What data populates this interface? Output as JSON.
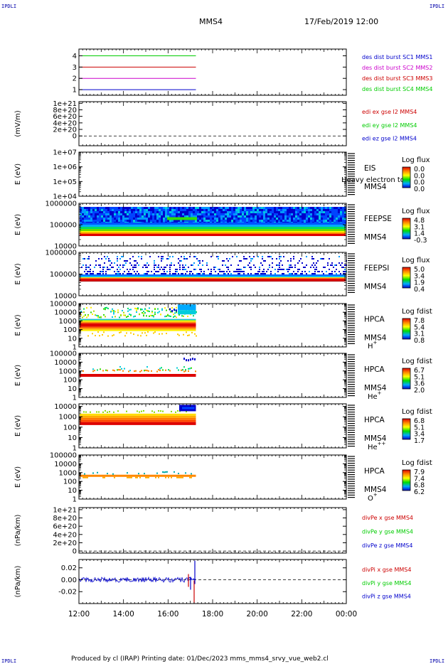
{
  "header": {
    "corner_label": "IPDLI",
    "spacecraft": "MMS4",
    "datetime": "17/Feb/2019 12:00"
  },
  "footer": {
    "credit": "Produced by cl (IRAP)   Printing date: 01/Dec/2023   mms_mms4_srvy_vue_web2.cl"
  },
  "colors": {
    "blue": "#0000cc",
    "magenta": "#cc00cc",
    "red": "#cc0000",
    "green": "#00cc00",
    "black": "#000000"
  },
  "chart_data": {
    "type": "multi-panel",
    "x_axis": {
      "ticks": [
        "12:00",
        "14:00",
        "16:00",
        "18:00",
        "20:00",
        "22:00",
        "00:00"
      ],
      "range_hours": [
        12,
        24
      ],
      "data_end_hours": 17.25
    },
    "panels": [
      {
        "id": "p1",
        "type": "line",
        "ylabel": "",
        "yticks": [
          "1",
          "2",
          "3",
          "4"
        ],
        "ylim": [
          0.5,
          4.6
        ],
        "series": [
          {
            "name": "des dist burst SC1 MMS1",
            "y": 1,
            "color": "#0000cc"
          },
          {
            "name": "des dist burst SC2 MMS2",
            "y": 2,
            "color": "#cc00cc"
          },
          {
            "name": "des dist burst SC3 MMS3",
            "y": 3,
            "color": "#cc0000"
          },
          {
            "name": "des dist burst SC4 MMS4",
            "y": 4,
            "color": "#00cc00"
          }
        ]
      },
      {
        "id": "p2",
        "type": "line",
        "ylabel": "(mV/m)",
        "yticks": [
          "0",
          "2e+20",
          "4e+20",
          "6e+20",
          "8e+20",
          "1e+21"
        ],
        "ylim": [
          -0.3,
          1.05
        ],
        "zero_line": true,
        "series": [
          {
            "name": "edi ex gse l2 MMS4",
            "color": "#cc0000"
          },
          {
            "name": "edi ey gse l2 MMS4",
            "color": "#00cc00"
          },
          {
            "name": "edi ez gse l2 MMS4",
            "color": "#0000cc"
          }
        ]
      },
      {
        "id": "p3",
        "type": "spectrogram",
        "ylabel": "E (eV)",
        "yticks": [
          "1e+04",
          "1e+05",
          "1e+06",
          "1e+07"
        ],
        "ylog": [
          4,
          7
        ],
        "labels": [
          "EIS",
          "MMS4"
        ],
        "overlay_text": "Heavy electron to",
        "colorbar": {
          "title": "Log flux",
          "values": [
            "0.0",
            "0.0",
            "0.0",
            "0.0"
          ]
        }
      },
      {
        "id": "p4",
        "type": "spectrogram",
        "ylabel": "E (eV)",
        "yticks": [
          "10000",
          "100000",
          "1000000"
        ],
        "ylog": [
          4,
          6
        ],
        "labels": [
          "FEEPSE",
          "MMS4"
        ],
        "colorbar": {
          "title": "Log flux",
          "values": [
            "4.8",
            "3.1",
            "1.4",
            "-0.3"
          ]
        }
      },
      {
        "id": "p5",
        "type": "spectrogram",
        "ylabel": "E (eV)",
        "yticks": [
          "10000",
          "100000",
          "1000000"
        ],
        "ylog": [
          4,
          6
        ],
        "labels": [
          "FEEPSI",
          "MMS4"
        ],
        "colorbar": {
          "title": "Log flux",
          "values": [
            "5.0",
            "3.4",
            "1.9",
            "0.4"
          ]
        }
      },
      {
        "id": "p6",
        "type": "spectrogram",
        "ylabel": "E (eV)",
        "yticks": [
          "1",
          "10",
          "100",
          "1000",
          "10000",
          "100000"
        ],
        "ylog": [
          0,
          5
        ],
        "labels": [
          "HPCA",
          "MMS4"
        ],
        "species": "H",
        "species_sup": "+",
        "colorbar": {
          "title": "Log fdist",
          "values": [
            "7.8",
            "5.4",
            "3.1",
            "0.8"
          ]
        }
      },
      {
        "id": "p7",
        "type": "spectrogram",
        "ylabel": "E (eV)",
        "yticks": [
          "1",
          "10",
          "100",
          "1000",
          "10000",
          "100000"
        ],
        "ylog": [
          0,
          5
        ],
        "labels": [
          "HPCA",
          "MMS4"
        ],
        "species": "He",
        "species_sup": "+",
        "colorbar": {
          "title": "Log fdist",
          "values": [
            "6.7",
            "5.1",
            "3.6",
            "2.0"
          ]
        }
      },
      {
        "id": "p8",
        "type": "spectrogram",
        "ylabel": "E (eV)",
        "yticks": [
          "1",
          "10",
          "100",
          "1000",
          "10000"
        ],
        "ylog": [
          0,
          4.25
        ],
        "labels": [
          "HPCA",
          "MMS4"
        ],
        "species": "He",
        "species_sup": "++",
        "colorbar": {
          "title": "Log fdist",
          "values": [
            "6.8",
            "5.1",
            "3.4",
            "1.7"
          ]
        }
      },
      {
        "id": "p9",
        "type": "spectrogram",
        "ylabel": "E (eV)",
        "yticks": [
          "1",
          "10",
          "100",
          "1000",
          "10000",
          "100000"
        ],
        "ylog": [
          0,
          5
        ],
        "labels": [
          "HPCA",
          "MMS4"
        ],
        "species": "O",
        "species_sup": "+",
        "colorbar": {
          "title": "Log fdist",
          "values": [
            "7.9",
            "7.4",
            "6.8",
            "6.2"
          ]
        }
      },
      {
        "id": "p10",
        "type": "line",
        "ylabel": "(nPa/km)",
        "yticks": [
          "0",
          "2e+20",
          "4e+20",
          "6e+20",
          "8e+20",
          "1e+21"
        ],
        "ylim": [
          -0.05,
          1.05
        ],
        "zero_line": true,
        "series": [
          {
            "name": "divPe x gse MMS4",
            "color": "#cc0000"
          },
          {
            "name": "divPe y gse MMS4",
            "color": "#00cc00"
          },
          {
            "name": "divPe z gse MMS4",
            "color": "#0000cc"
          }
        ]
      },
      {
        "id": "p11",
        "type": "line",
        "ylabel": "(nPa/km)",
        "yticks": [
          "-0.02",
          "0.00",
          "0.02"
        ],
        "ylim": [
          -0.04,
          0.034
        ],
        "zero_line": true,
        "series": [
          {
            "name": "divPi x gse MMS4",
            "color": "#cc0000"
          },
          {
            "name": "divPi y gse MMS4",
            "color": "#00cc00"
          },
          {
            "name": "divPi z gse MMS4",
            "color": "#0000cc"
          }
        ]
      }
    ]
  }
}
